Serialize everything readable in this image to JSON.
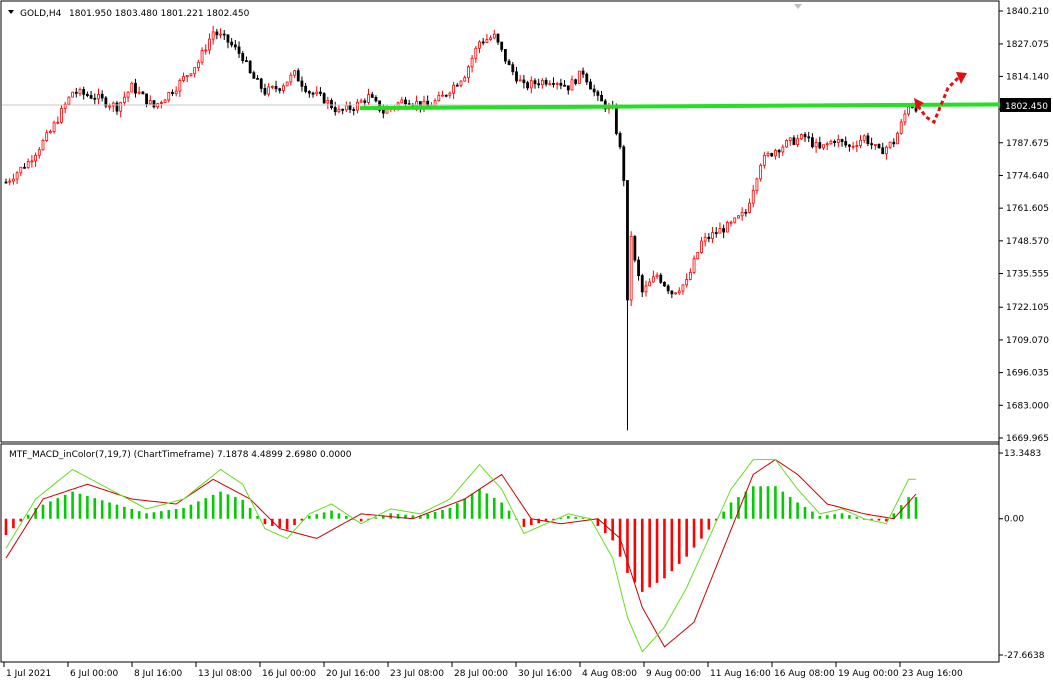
{
  "main_header": {
    "symbol": "GOLD,H4",
    "ohlc": "1801.950 1803.480 1801.221 1802.450"
  },
  "indicator_header": {
    "text": "MTF_MACD_inColor(7,19,7) (ChartTimeframe) 7.1878 4.4899 2.6980 0.0000"
  },
  "price_scale": [
    "1840.210",
    "1827.075",
    "1814.140",
    "1801.055",
    "1787.675",
    "1774.640",
    "1761.605",
    "1748.570",
    "1735.555",
    "1722.105",
    "1709.070",
    "1696.035",
    "1683.000",
    "1669.965"
  ],
  "current_price": "1802.450",
  "indicator_scale": [
    "13.3483",
    "0.00",
    "-27.6638"
  ],
  "time_labels": [
    "1 Jul 2021",
    "6 Jul 00:00",
    "8 Jul 16:00",
    "13 Jul 08:00",
    "16 Jul 00:00",
    "20 Jul 16:00",
    "23 Jul 08:00",
    "28 Jul 00:00",
    "30 Jul 16:00",
    "4 Aug 08:00",
    "9 Aug 00:00",
    "11 Aug 16:00",
    "16 Aug 08:00",
    "19 Aug 00:00",
    "23 Aug 16:00"
  ],
  "colors": {
    "bull": "#ff0000",
    "bear": "#000000",
    "support_line": "#22e022",
    "arrow": "#e01010",
    "hist_pos": "#00cc00",
    "hist_neg": "#ff0000",
    "macd_line": "#66dd22",
    "signal_line": "#cc0000"
  },
  "chart_data": [
    {
      "type": "candlestick",
      "title": "GOLD,H4",
      "ylim": [
        1669.965,
        1840.21
      ],
      "support_level": 1801.0,
      "anchors": [
        [
          0,
          1772
        ],
        [
          6,
          1780
        ],
        [
          12,
          1792
        ],
        [
          18,
          1808
        ],
        [
          24,
          1806
        ],
        [
          30,
          1802
        ],
        [
          34,
          1810
        ],
        [
          40,
          1802
        ],
        [
          46,
          1810
        ],
        [
          52,
          1820
        ],
        [
          56,
          1832
        ],
        [
          60,
          1828
        ],
        [
          64,
          1822
        ],
        [
          66,
          1815
        ],
        [
          70,
          1808
        ],
        [
          74,
          1810
        ],
        [
          78,
          1815
        ],
        [
          82,
          1808
        ],
        [
          86,
          1805
        ],
        [
          90,
          1800
        ],
        [
          94,
          1802
        ],
        [
          98,
          1806
        ],
        [
          102,
          1800
        ],
        [
          108,
          1805
        ],
        [
          114,
          1802
        ],
        [
          118,
          1806
        ],
        [
          124,
          1815
        ],
        [
          128,
          1828
        ],
        [
          132,
          1830
        ],
        [
          136,
          1818
        ],
        [
          140,
          1810
        ],
        [
          144,
          1812
        ],
        [
          148,
          1813
        ],
        [
          152,
          1810
        ],
        [
          156,
          1816
        ],
        [
          160,
          1805
        ],
        [
          164,
          1800
        ],
        [
          166,
          1785
        ],
        [
          168,
          1762
        ],
        [
          170,
          1740
        ],
        [
          172,
          1728
        ],
        [
          176,
          1735
        ],
        [
          180,
          1728
        ],
        [
          184,
          1732
        ],
        [
          188,
          1748
        ],
        [
          192,
          1752
        ],
        [
          196,
          1755
        ],
        [
          200,
          1760
        ],
        [
          204,
          1780
        ],
        [
          208,
          1785
        ],
        [
          212,
          1788
        ],
        [
          216,
          1790
        ],
        [
          220,
          1785
        ],
        [
          224,
          1789
        ],
        [
          228,
          1786
        ],
        [
          232,
          1790
        ],
        [
          236,
          1784
        ],
        [
          240,
          1788
        ],
        [
          242,
          1795
        ],
        [
          244,
          1803
        ],
        [
          246,
          1802
        ]
      ]
    },
    {
      "type": "macd_histogram",
      "title": "MTF_MACD_inColor(7,19,7)",
      "ylim": [
        -27.6638,
        13.3483
      ],
      "values_header": [
        7.1878,
        4.4899,
        2.698,
        0.0
      ],
      "macd_anchors": [
        [
          0,
          -6
        ],
        [
          8,
          4
        ],
        [
          18,
          10
        ],
        [
          28,
          6
        ],
        [
          38,
          2
        ],
        [
          48,
          4
        ],
        [
          58,
          10
        ],
        [
          64,
          7
        ],
        [
          70,
          -2
        ],
        [
          76,
          -4
        ],
        [
          82,
          1
        ],
        [
          88,
          3
        ],
        [
          96,
          -1
        ],
        [
          104,
          2
        ],
        [
          112,
          1
        ],
        [
          120,
          4
        ],
        [
          128,
          11
        ],
        [
          134,
          6
        ],
        [
          140,
          -3
        ],
        [
          146,
          -1
        ],
        [
          152,
          1
        ],
        [
          158,
          0
        ],
        [
          164,
          -8
        ],
        [
          168,
          -20
        ],
        [
          172,
          -27
        ],
        [
          178,
          -22
        ],
        [
          184,
          -14
        ],
        [
          190,
          -4
        ],
        [
          196,
          6
        ],
        [
          202,
          12
        ],
        [
          208,
          12
        ],
        [
          214,
          6
        ],
        [
          220,
          1
        ],
        [
          226,
          2
        ],
        [
          232,
          0
        ],
        [
          238,
          -1
        ],
        [
          244,
          8
        ],
        [
          246,
          8
        ]
      ],
      "signal_anchors": [
        [
          0,
          -8
        ],
        [
          10,
          4
        ],
        [
          22,
          7
        ],
        [
          34,
          4
        ],
        [
          46,
          3
        ],
        [
          56,
          8
        ],
        [
          66,
          4
        ],
        [
          74,
          -2
        ],
        [
          84,
          -4
        ],
        [
          96,
          1
        ],
        [
          110,
          0
        ],
        [
          124,
          4
        ],
        [
          134,
          9
        ],
        [
          142,
          0
        ],
        [
          150,
          -1
        ],
        [
          160,
          0
        ],
        [
          166,
          -4
        ],
        [
          172,
          -18
        ],
        [
          178,
          -26
        ],
        [
          186,
          -21
        ],
        [
          194,
          -6
        ],
        [
          202,
          9
        ],
        [
          208,
          12
        ],
        [
          214,
          9
        ],
        [
          222,
          3
        ],
        [
          232,
          1
        ],
        [
          240,
          0
        ],
        [
          246,
          5
        ]
      ]
    }
  ]
}
